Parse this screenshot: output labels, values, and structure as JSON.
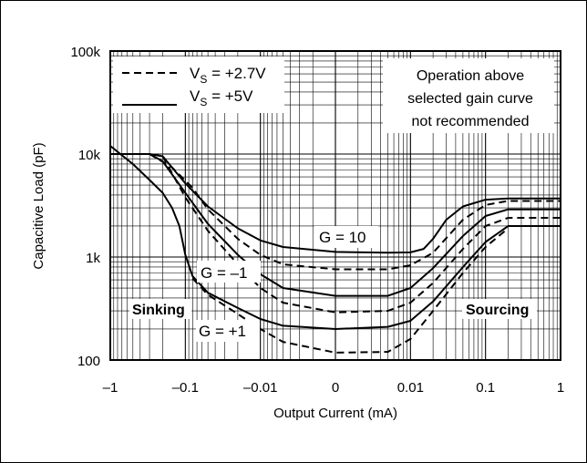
{
  "chart_data": {
    "type": "line",
    "title": "",
    "xlabel": "Output Current (mA)",
    "ylabel": "Capacitive Load (pF)",
    "x_scale": "symmetric-log",
    "y_scale": "log",
    "ylim": [
      100,
      100000
    ],
    "x_ticks": [
      "–1",
      "–0.1",
      "–0.01",
      "0",
      "0.01",
      "0.1",
      "1"
    ],
    "y_ticks": [
      "100k",
      "10k",
      "1k",
      "100"
    ],
    "grid": true,
    "legend": {
      "position": "top-left",
      "entries": [
        {
          "label": "V",
          "sub": "S",
          "value": " = +2.7V",
          "style": "dashed"
        },
        {
          "label": "V",
          "sub": "S",
          "value": " = +5V",
          "style": "solid"
        }
      ]
    },
    "annotations": {
      "note": [
        "Operation above",
        "selected gain curve",
        "not recommended"
      ],
      "sinking": "Sinking",
      "sourcing": "Sourcing",
      "g10": "G = 10",
      "gm1": "G = –1",
      "gp1": "G = +1"
    },
    "series": [
      {
        "gain": "G = 10",
        "supply": "+5V",
        "style": "solid",
        "points": [
          [
            -1,
            10000
          ],
          [
            -0.5,
            10000
          ],
          [
            -0.3,
            10000
          ],
          [
            -0.2,
            9500
          ],
          [
            -0.1,
            5200
          ],
          [
            -0.05,
            3100
          ],
          [
            -0.02,
            1900
          ],
          [
            -0.01,
            1450
          ],
          [
            -0.005,
            1250
          ],
          [
            0,
            1120
          ],
          [
            0.005,
            1100
          ],
          [
            0.01,
            1110
          ],
          [
            0.015,
            1200
          ],
          [
            0.02,
            1500
          ],
          [
            0.03,
            2300
          ],
          [
            0.05,
            3100
          ],
          [
            0.1,
            3600
          ],
          [
            0.2,
            3700
          ],
          [
            1,
            3700
          ]
        ]
      },
      {
        "gain": "G = 10",
        "supply": "+2.7V",
        "style": "dashed",
        "points": [
          [
            -0.3,
            10000
          ],
          [
            -0.15,
            7400
          ],
          [
            -0.08,
            4700
          ],
          [
            -0.05,
            2900
          ],
          [
            -0.02,
            1500
          ],
          [
            -0.01,
            1050
          ],
          [
            -0.005,
            850
          ],
          [
            0,
            760
          ],
          [
            0.005,
            760
          ],
          [
            0.01,
            830
          ],
          [
            0.02,
            1100
          ],
          [
            0.05,
            2300
          ],
          [
            0.1,
            3200
          ],
          [
            0.2,
            3500
          ],
          [
            1,
            3500
          ]
        ]
      },
      {
        "gain": "G = –1",
        "supply": "+5V",
        "style": "solid",
        "points": [
          [
            -0.3,
            10000
          ],
          [
            -0.2,
            8500
          ],
          [
            -0.1,
            4200
          ],
          [
            -0.05,
            2100
          ],
          [
            -0.02,
            1050
          ],
          [
            -0.01,
            680
          ],
          [
            -0.005,
            500
          ],
          [
            0,
            420
          ],
          [
            0.005,
            420
          ],
          [
            0.01,
            500
          ],
          [
            0.02,
            780
          ],
          [
            0.05,
            1600
          ],
          [
            0.1,
            2500
          ],
          [
            0.2,
            2900
          ],
          [
            1,
            2900
          ]
        ]
      },
      {
        "gain": "G = –1",
        "supply": "+2.7V",
        "style": "dashed",
        "points": [
          [
            -0.2,
            9500
          ],
          [
            -0.1,
            3800
          ],
          [
            -0.05,
            1800
          ],
          [
            -0.02,
            850
          ],
          [
            -0.01,
            500
          ],
          [
            -0.005,
            360
          ],
          [
            0,
            290
          ],
          [
            0.005,
            300
          ],
          [
            0.01,
            360
          ],
          [
            0.02,
            560
          ],
          [
            0.05,
            1200
          ],
          [
            0.1,
            2000
          ],
          [
            0.2,
            2400
          ],
          [
            1,
            2400
          ]
        ]
      },
      {
        "gain": "G = +1",
        "supply": "+5V",
        "style": "solid",
        "points": [
          [
            -1,
            12000
          ],
          [
            -0.5,
            8000
          ],
          [
            -0.3,
            5600
          ],
          [
            -0.2,
            4200
          ],
          [
            -0.15,
            3000
          ],
          [
            -0.12,
            2000
          ],
          [
            -0.1,
            1050
          ],
          [
            -0.08,
            650
          ],
          [
            -0.05,
            450
          ],
          [
            -0.02,
            320
          ],
          [
            -0.01,
            250
          ],
          [
            -0.005,
            215
          ],
          [
            0,
            200
          ],
          [
            0.005,
            210
          ],
          [
            0.01,
            240
          ],
          [
            0.02,
            370
          ],
          [
            0.05,
            800
          ],
          [
            0.1,
            1400
          ],
          [
            0.2,
            2000
          ],
          [
            1,
            2000
          ]
        ]
      },
      {
        "gain": "G = +1",
        "supply": "+2.7V",
        "style": "dashed",
        "points": [
          [
            -0.08,
            620
          ],
          [
            -0.05,
            430
          ],
          [
            -0.02,
            280
          ],
          [
            -0.01,
            200
          ],
          [
            -0.005,
            150
          ],
          [
            0,
            118
          ],
          [
            0.005,
            120
          ],
          [
            0.01,
            160
          ],
          [
            0.02,
            300
          ],
          [
            0.05,
            700
          ],
          [
            0.1,
            1250
          ],
          [
            0.2,
            1900
          ]
        ]
      }
    ]
  }
}
